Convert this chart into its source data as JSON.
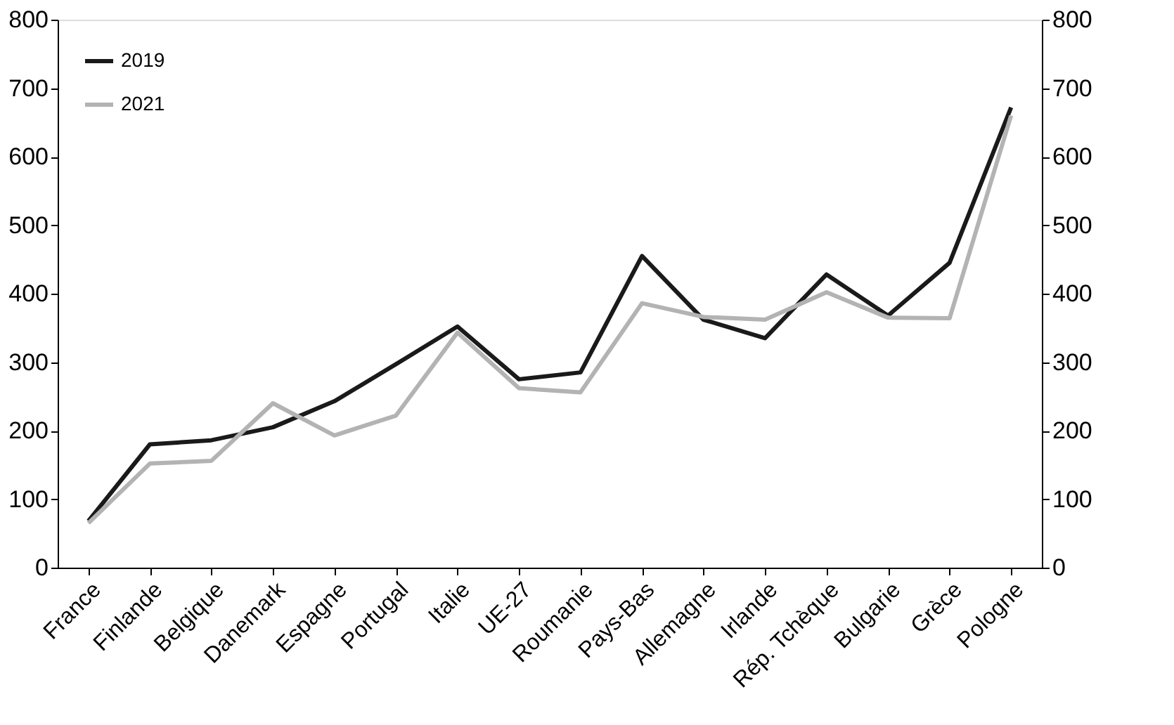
{
  "chart_data": {
    "type": "line",
    "categories": [
      "France",
      "Finlande",
      "Belgique",
      "Danemark",
      "Espagne",
      "Portugal",
      "Italie",
      "UE-27",
      "Roumanie",
      "Pays-Bas",
      "Allemagne",
      "Irlande",
      "Rép. Tchèque",
      "Bulgarie",
      "Grèce",
      "Pologne"
    ],
    "series": [
      {
        "name": "2019",
        "color": "#1a1a1a",
        "values": [
          68,
          180,
          186,
          205,
          243,
          297,
          352,
          275,
          285,
          455,
          362,
          335,
          428,
          368,
          445,
          672
        ]
      },
      {
        "name": "2021",
        "color": "#b3b3b3",
        "values": [
          65,
          152,
          156,
          240,
          193,
          222,
          343,
          262,
          256,
          386,
          366,
          362,
          402,
          365,
          364,
          660
        ]
      }
    ],
    "ylim": [
      0,
      800
    ],
    "yticks": [
      0,
      100,
      200,
      300,
      400,
      500,
      600,
      700,
      800
    ],
    "y2lim": [
      0,
      800
    ],
    "y2ticks": [
      0,
      100,
      200,
      300,
      400,
      500,
      600,
      700,
      800
    ],
    "grid": false,
    "legend": "top left",
    "marker": "none",
    "line_style": "solid"
  }
}
